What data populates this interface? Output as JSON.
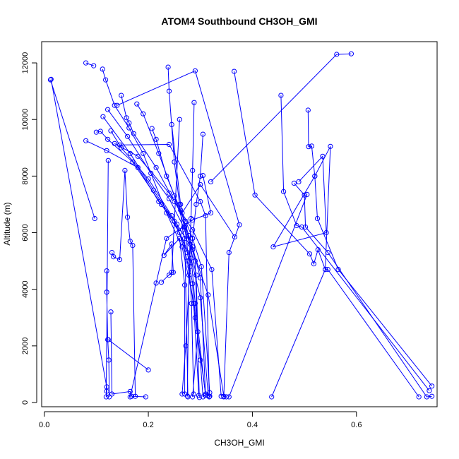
{
  "chart_data": {
    "type": "line",
    "title": "ATOM4 Southbound CH3OH_GMI",
    "xlabel": "CH3OH_GMI",
    "ylabel": "Altitude (m)",
    "xlim": [
      -0.005,
      0.755
    ],
    "ylim": [
      -150,
      12750
    ],
    "xticks": [
      0.0,
      0.2,
      0.4,
      0.6
    ],
    "xtick_labels": [
      "0.0",
      "0.2",
      "0.4",
      "0.6"
    ],
    "yticks": [
      0,
      2000,
      4000,
      6000,
      8000,
      10000,
      12000
    ],
    "ytick_labels": [
      "0",
      "2000",
      "4000",
      "6000",
      "8000",
      "10000",
      "12000"
    ],
    "grid": false,
    "legend": "none",
    "series_color": "#0000ff",
    "series": [
      {
        "points": [
          {
            "x": 0.012,
            "y": 11400
          },
          {
            "x": 0.097,
            "y": 6500
          }
        ]
      },
      {
        "points": [
          {
            "x": 0.013,
            "y": 11420
          },
          {
            "x": 0.12,
            "y": 550
          },
          {
            "x": 0.12,
            "y": 400
          },
          {
            "x": 0.119,
            "y": 200
          },
          {
            "x": 0.123,
            "y": 8550
          }
        ]
      },
      {
        "points": [
          {
            "x": 0.08,
            "y": 12000
          },
          {
            "x": 0.095,
            "y": 11900
          }
        ]
      },
      {
        "points": [
          {
            "x": 0.112,
            "y": 11780
          },
          {
            "x": 0.118,
            "y": 11400
          },
          {
            "x": 0.135,
            "y": 10500
          },
          {
            "x": 0.163,
            "y": 9700
          },
          {
            "x": 0.19,
            "y": 8800
          },
          {
            "x": 0.235,
            "y": 6700
          },
          {
            "x": 0.265,
            "y": 5500
          },
          {
            "x": 0.288,
            "y": 3500
          },
          {
            "x": 0.3,
            "y": 1500
          },
          {
            "x": 0.305,
            "y": 200
          }
        ]
      },
      {
        "points": [
          {
            "x": 0.08,
            "y": 9250
          },
          {
            "x": 0.12,
            "y": 8900
          },
          {
            "x": 0.18,
            "y": 8300
          },
          {
            "x": 0.22,
            "y": 7100
          },
          {
            "x": 0.255,
            "y": 6300
          },
          {
            "x": 0.275,
            "y": 5000
          },
          {
            "x": 0.29,
            "y": 3000
          },
          {
            "x": 0.31,
            "y": 300
          },
          {
            "x": 0.318,
            "y": 220
          }
        ]
      },
      {
        "points": [
          {
            "x": 0.1,
            "y": 9550
          },
          {
            "x": 0.108,
            "y": 9580
          },
          {
            "x": 0.122,
            "y": 9300
          },
          {
            "x": 0.17,
            "y": 8500
          },
          {
            "x": 0.225,
            "y": 7000
          },
          {
            "x": 0.26,
            "y": 6000
          },
          {
            "x": 0.282,
            "y": 5100
          },
          {
            "x": 0.3,
            "y": 3700
          },
          {
            "x": 0.315,
            "y": 250
          }
        ]
      },
      {
        "points": [
          {
            "x": 0.128,
            "y": 9600
          },
          {
            "x": 0.148,
            "y": 9000
          },
          {
            "x": 0.2,
            "y": 7900
          },
          {
            "x": 0.245,
            "y": 6600
          },
          {
            "x": 0.285,
            "y": 5400
          },
          {
            "x": 0.315,
            "y": 3800
          },
          {
            "x": 0.345,
            "y": 220
          },
          {
            "x": 0.35,
            "y": 200
          }
        ]
      },
      {
        "points": [
          {
            "x": 0.113,
            "y": 10100
          },
          {
            "x": 0.165,
            "y": 8800
          },
          {
            "x": 0.21,
            "y": 7500
          },
          {
            "x": 0.25,
            "y": 6400
          },
          {
            "x": 0.275,
            "y": 5300
          },
          {
            "x": 0.285,
            "y": 4200
          },
          {
            "x": 0.297,
            "y": 250
          }
        ]
      },
      {
        "points": [
          {
            "x": 0.122,
            "y": 10350
          },
          {
            "x": 0.16,
            "y": 9400
          },
          {
            "x": 0.205,
            "y": 8100
          },
          {
            "x": 0.24,
            "y": 7200
          },
          {
            "x": 0.268,
            "y": 6200
          },
          {
            "x": 0.28,
            "y": 5600
          },
          {
            "x": 0.292,
            "y": 4500
          },
          {
            "x": 0.295,
            "y": 2500
          },
          {
            "x": 0.285,
            "y": 200
          }
        ]
      },
      {
        "points": [
          {
            "x": 0.148,
            "y": 10850
          },
          {
            "x": 0.158,
            "y": 10060
          },
          {
            "x": 0.163,
            "y": 9880
          },
          {
            "x": 0.172,
            "y": 9500
          },
          {
            "x": 0.215,
            "y": 8300
          },
          {
            "x": 0.25,
            "y": 7100
          },
          {
            "x": 0.272,
            "y": 6400
          },
          {
            "x": 0.285,
            "y": 5800
          },
          {
            "x": 0.302,
            "y": 4800
          },
          {
            "x": 0.318,
            "y": 350
          }
        ]
      },
      {
        "points": [
          {
            "x": 0.178,
            "y": 10550
          },
          {
            "x": 0.19,
            "y": 10200
          },
          {
            "x": 0.22,
            "y": 8800
          },
          {
            "x": 0.25,
            "y": 7300
          },
          {
            "x": 0.27,
            "y": 6200
          },
          {
            "x": 0.285,
            "y": 5500
          },
          {
            "x": 0.3,
            "y": 4400
          },
          {
            "x": 0.31,
            "y": 250
          }
        ]
      },
      {
        "points": [
          {
            "x": 0.207,
            "y": 9680
          },
          {
            "x": 0.215,
            "y": 9300
          },
          {
            "x": 0.235,
            "y": 8000
          },
          {
            "x": 0.262,
            "y": 6800
          },
          {
            "x": 0.278,
            "y": 5900
          },
          {
            "x": 0.29,
            "y": 5000
          },
          {
            "x": 0.298,
            "y": 180
          }
        ]
      },
      {
        "points": [
          {
            "x": 0.245,
            "y": 9820
          },
          {
            "x": 0.262,
            "y": 7000
          },
          {
            "x": 0.27,
            "y": 6200
          },
          {
            "x": 0.278,
            "y": 5000
          },
          {
            "x": 0.283,
            "y": 3500
          },
          {
            "x": 0.287,
            "y": 300
          }
        ]
      },
      {
        "points": [
          {
            "x": 0.26,
            "y": 10000
          },
          {
            "x": 0.245,
            "y": 4600
          },
          {
            "x": 0.225,
            "y": 4250
          }
        ]
      },
      {
        "points": [
          {
            "x": 0.238,
            "y": 11850
          },
          {
            "x": 0.24,
            "y": 11000
          },
          {
            "x": 0.25,
            "y": 8500
          },
          {
            "x": 0.26,
            "y": 7000
          },
          {
            "x": 0.266,
            "y": 6100
          },
          {
            "x": 0.27,
            "y": 5800
          },
          {
            "x": 0.276,
            "y": 200
          }
        ]
      },
      {
        "points": [
          {
            "x": 0.14,
            "y": 10500
          },
          {
            "x": 0.29,
            "y": 11720
          },
          {
            "x": 0.375,
            "y": 6280
          },
          {
            "x": 0.355,
            "y": 5300
          },
          {
            "x": 0.345,
            "y": 200
          }
        ]
      },
      {
        "points": [
          {
            "x": 0.288,
            "y": 10600
          },
          {
            "x": 0.285,
            "y": 8200
          },
          {
            "x": 0.282,
            "y": 6500
          },
          {
            "x": 0.28,
            "y": 5600
          },
          {
            "x": 0.278,
            "y": 4500
          },
          {
            "x": 0.275,
            "y": 230
          }
        ]
      },
      {
        "points": [
          {
            "x": 0.305,
            "y": 9480
          },
          {
            "x": 0.3,
            "y": 8000
          },
          {
            "x": 0.292,
            "y": 7000
          },
          {
            "x": 0.285,
            "y": 5800
          },
          {
            "x": 0.28,
            "y": 4800
          },
          {
            "x": 0.272,
            "y": 2000
          },
          {
            "x": 0.265,
            "y": 300
          }
        ]
      },
      {
        "points": [
          {
            "x": 0.135,
            "y": 9150
          },
          {
            "x": 0.18,
            "y": 8700
          },
          {
            "x": 0.24,
            "y": 7400
          },
          {
            "x": 0.285,
            "y": 6100
          },
          {
            "x": 0.322,
            "y": 4700
          },
          {
            "x": 0.34,
            "y": 220
          }
        ]
      },
      {
        "points": [
          {
            "x": 0.145,
            "y": 9100
          },
          {
            "x": 0.24,
            "y": 9120
          },
          {
            "x": 0.3,
            "y": 7100
          },
          {
            "x": 0.31,
            "y": 6600
          },
          {
            "x": 0.317,
            "y": 200
          }
        ]
      },
      {
        "points": [
          {
            "x": 0.13,
            "y": 5300
          },
          {
            "x": 0.133,
            "y": 5150
          },
          {
            "x": 0.145,
            "y": 5050
          },
          {
            "x": 0.155,
            "y": 8200
          },
          {
            "x": 0.16,
            "y": 6550
          },
          {
            "x": 0.165,
            "y": 5700
          },
          {
            "x": 0.17,
            "y": 5550
          },
          {
            "x": 0.175,
            "y": 220
          }
        ]
      },
      {
        "points": [
          {
            "x": 0.12,
            "y": 4650
          },
          {
            "x": 0.12,
            "y": 3900
          },
          {
            "x": 0.122,
            "y": 2220
          },
          {
            "x": 0.124,
            "y": 1500
          },
          {
            "x": 0.125,
            "y": 200
          }
        ]
      },
      {
        "points": [
          {
            "x": 0.128,
            "y": 3200
          },
          {
            "x": 0.13,
            "y": 300
          },
          {
            "x": 0.165,
            "y": 390
          },
          {
            "x": 0.168,
            "y": 220
          },
          {
            "x": 0.195,
            "y": 200
          }
        ]
      },
      {
        "points": [
          {
            "x": 0.123,
            "y": 2220
          },
          {
            "x": 0.2,
            "y": 1150
          }
        ]
      },
      {
        "points": [
          {
            "x": 0.165,
            "y": 200
          },
          {
            "x": 0.215,
            "y": 4220
          },
          {
            "x": 0.235,
            "y": 5800
          },
          {
            "x": 0.285,
            "y": 6450
          },
          {
            "x": 0.32,
            "y": 6700
          },
          {
            "x": 0.305,
            "y": 8020
          }
        ]
      },
      {
        "points": [
          {
            "x": 0.24,
            "y": 4500
          },
          {
            "x": 0.248,
            "y": 4600
          },
          {
            "x": 0.245,
            "y": 5600
          },
          {
            "x": 0.23,
            "y": 5200
          },
          {
            "x": 0.26,
            "y": 5800
          },
          {
            "x": 0.27,
            "y": 4150
          },
          {
            "x": 0.27,
            "y": 300
          }
        ]
      },
      {
        "points": [
          {
            "x": 0.32,
            "y": 7800
          },
          {
            "x": 0.562,
            "y": 12300
          },
          {
            "x": 0.59,
            "y": 12320
          }
        ]
      },
      {
        "points": [
          {
            "x": 0.366,
            "y": 5850
          },
          {
            "x": 0.3,
            "y": 7700
          },
          {
            "x": 0.265,
            "y": 6700
          },
          {
            "x": 0.28,
            "y": 5600
          },
          {
            "x": 0.29,
            "y": 3500
          },
          {
            "x": 0.31,
            "y": 250
          }
        ]
      },
      {
        "points": [
          {
            "x": 0.365,
            "y": 11700
          },
          {
            "x": 0.405,
            "y": 7330
          },
          {
            "x": 0.51,
            "y": 5250
          },
          {
            "x": 0.518,
            "y": 4900
          },
          {
            "x": 0.526,
            "y": 5400
          },
          {
            "x": 0.54,
            "y": 4700
          },
          {
            "x": 0.545,
            "y": 4700
          },
          {
            "x": 0.72,
            "y": 200
          }
        ]
      },
      {
        "points": [
          {
            "x": 0.455,
            "y": 10850
          },
          {
            "x": 0.46,
            "y": 7450
          },
          {
            "x": 0.485,
            "y": 6250
          },
          {
            "x": 0.495,
            "y": 6200
          },
          {
            "x": 0.74,
            "y": 420
          }
        ]
      },
      {
        "points": [
          {
            "x": 0.507,
            "y": 10330
          },
          {
            "x": 0.508,
            "y": 9040
          },
          {
            "x": 0.514,
            "y": 9060
          },
          {
            "x": 0.52,
            "y": 8000
          },
          {
            "x": 0.525,
            "y": 6500
          },
          {
            "x": 0.565,
            "y": 4700
          },
          {
            "x": 0.745,
            "y": 580
          }
        ]
      },
      {
        "points": [
          {
            "x": 0.48,
            "y": 7750
          },
          {
            "x": 0.5,
            "y": 7330
          },
          {
            "x": 0.502,
            "y": 6200
          },
          {
            "x": 0.545,
            "y": 5300
          },
          {
            "x": 0.735,
            "y": 200
          },
          {
            "x": 0.745,
            "y": 220
          }
        ]
      },
      {
        "points": [
          {
            "x": 0.489,
            "y": 7800
          },
          {
            "x": 0.535,
            "y": 8700
          },
          {
            "x": 0.542,
            "y": 6000
          },
          {
            "x": 0.44,
            "y": 5500
          },
          {
            "x": 0.52,
            "y": 8000
          },
          {
            "x": 0.55,
            "y": 9050
          },
          {
            "x": 0.54,
            "y": 4700
          },
          {
            "x": 0.437,
            "y": 200
          }
        ]
      },
      {
        "points": [
          {
            "x": 0.355,
            "y": 200
          },
          {
            "x": 0.505,
            "y": 7350
          }
        ]
      }
    ]
  }
}
